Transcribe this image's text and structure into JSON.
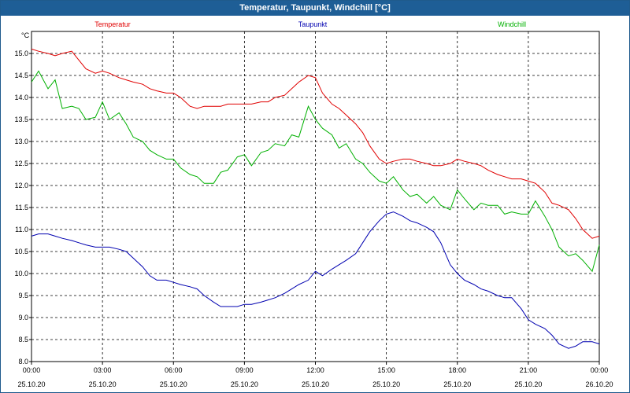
{
  "window": {
    "title": "Temperatur, Taupunkt, Windchill [°C]"
  },
  "chart_data": {
    "type": "line",
    "title": "Temperatur, Taupunkt, Windchill [°C]",
    "ylabel": "°C",
    "xlabel": "",
    "ylim": [
      8.0,
      15.5
    ],
    "yticks": [
      "8.0",
      "8.5",
      "9.0",
      "9.5",
      "10.0",
      "10.5",
      "11.0",
      "11.5",
      "12.0",
      "12.5",
      "13.0",
      "13.5",
      "14.0",
      "14.5",
      "15.0"
    ],
    "ytick_values": [
      8.0,
      8.5,
      9.0,
      9.5,
      10.0,
      10.5,
      11.0,
      11.5,
      12.0,
      12.5,
      13.0,
      13.5,
      14.0,
      14.5,
      15.0
    ],
    "xlim_hours": [
      0,
      24
    ],
    "xticks": [
      {
        "h": 0,
        "time": "00:00",
        "date": "25.10.20"
      },
      {
        "h": 3,
        "time": "03:00",
        "date": "25.10.20"
      },
      {
        "h": 6,
        "time": "06:00",
        "date": "25.10.20"
      },
      {
        "h": 9,
        "time": "09:00",
        "date": "25.10.20"
      },
      {
        "h": 12,
        "time": "12:00",
        "date": "25.10.20"
      },
      {
        "h": 15,
        "time": "15:00",
        "date": "25.10.20"
      },
      {
        "h": 18,
        "time": "18:00",
        "date": "25.10.20"
      },
      {
        "h": 21,
        "time": "21:00",
        "date": "25.10.20"
      },
      {
        "h": 24,
        "time": "00:00",
        "date": "26.10.20"
      }
    ],
    "grid": true,
    "legend_placement": "top",
    "series": [
      {
        "name": "Temperatur",
        "color": "#e00000",
        "x": [
          0,
          0.3,
          0.7,
          1,
          1.3,
          1.7,
          2,
          2.3,
          2.7,
          3,
          3.3,
          3.7,
          4,
          4.3,
          4.7,
          5,
          5.3,
          5.7,
          6,
          6.3,
          6.7,
          7,
          7.3,
          7.7,
          8,
          8.3,
          8.7,
          9,
          9.3,
          9.7,
          10,
          10.3,
          10.7,
          11,
          11.3,
          11.7,
          12,
          12.3,
          12.7,
          13,
          13.3,
          13.7,
          14,
          14.3,
          14.7,
          15,
          15.3,
          15.7,
          16,
          16.3,
          16.7,
          17,
          17.3,
          17.7,
          18,
          18.3,
          18.7,
          19,
          19.3,
          19.7,
          20,
          20.3,
          20.7,
          21,
          21.3,
          21.7,
          22,
          22.3,
          22.7,
          23,
          23.3,
          23.7,
          24
        ],
        "values": [
          15.1,
          15.05,
          15.0,
          14.95,
          15.0,
          15.05,
          14.85,
          14.65,
          14.55,
          14.6,
          14.55,
          14.45,
          14.4,
          14.35,
          14.3,
          14.2,
          14.15,
          14.1,
          14.1,
          14.0,
          13.8,
          13.75,
          13.8,
          13.8,
          13.8,
          13.85,
          13.85,
          13.85,
          13.85,
          13.9,
          13.9,
          14.0,
          14.05,
          14.2,
          14.35,
          14.5,
          14.45,
          14.1,
          13.85,
          13.75,
          13.6,
          13.4,
          13.2,
          12.9,
          12.6,
          12.5,
          12.55,
          12.6,
          12.6,
          12.55,
          12.5,
          12.45,
          12.45,
          12.5,
          12.6,
          12.55,
          12.5,
          12.45,
          12.35,
          12.25,
          12.2,
          12.15,
          12.15,
          12.1,
          12.05,
          11.85,
          11.6,
          11.55,
          11.45,
          11.25,
          11.0,
          10.8,
          10.85
        ]
      },
      {
        "name": "Taupunkt",
        "color": "#0000b0",
        "x": [
          0,
          0.3,
          0.7,
          1,
          1.3,
          1.7,
          2,
          2.3,
          2.7,
          3,
          3.3,
          3.7,
          4,
          4.3,
          4.7,
          5,
          5.3,
          5.7,
          6,
          6.3,
          6.7,
          7,
          7.3,
          7.7,
          8,
          8.3,
          8.7,
          9,
          9.3,
          9.7,
          10,
          10.3,
          10.7,
          11,
          11.3,
          11.7,
          12,
          12.3,
          12.7,
          13,
          13.3,
          13.7,
          14,
          14.3,
          14.7,
          15,
          15.3,
          15.7,
          16,
          16.3,
          16.7,
          17,
          17.3,
          17.7,
          18,
          18.3,
          18.7,
          19,
          19.3,
          19.7,
          20,
          20.3,
          20.7,
          21,
          21.3,
          21.7,
          22,
          22.3,
          22.7,
          23,
          23.3,
          23.7,
          24
        ],
        "values": [
          10.85,
          10.9,
          10.9,
          10.85,
          10.8,
          10.75,
          10.7,
          10.65,
          10.6,
          10.6,
          10.6,
          10.55,
          10.5,
          10.35,
          10.15,
          9.95,
          9.85,
          9.85,
          9.8,
          9.75,
          9.7,
          9.65,
          9.5,
          9.35,
          9.25,
          9.25,
          9.25,
          9.3,
          9.3,
          9.35,
          9.4,
          9.45,
          9.55,
          9.65,
          9.75,
          9.85,
          10.05,
          9.95,
          10.1,
          10.2,
          10.3,
          10.45,
          10.7,
          10.95,
          11.2,
          11.35,
          11.4,
          11.3,
          11.2,
          11.15,
          11.05,
          10.95,
          10.7,
          10.2,
          10.0,
          9.85,
          9.75,
          9.65,
          9.6,
          9.5,
          9.45,
          9.45,
          9.2,
          8.95,
          8.85,
          8.75,
          8.6,
          8.4,
          8.3,
          8.35,
          8.45,
          8.45,
          8.4
        ]
      },
      {
        "name": "Windchill",
        "color": "#00b000",
        "x": [
          0,
          0.3,
          0.7,
          1,
          1.3,
          1.7,
          2,
          2.3,
          2.7,
          3,
          3.3,
          3.7,
          4,
          4.3,
          4.7,
          5,
          5.3,
          5.7,
          6,
          6.3,
          6.7,
          7,
          7.3,
          7.7,
          8,
          8.3,
          8.7,
          9,
          9.3,
          9.7,
          10,
          10.3,
          10.7,
          11,
          11.3,
          11.7,
          12,
          12.3,
          12.7,
          13,
          13.3,
          13.7,
          14,
          14.3,
          14.7,
          15,
          15.3,
          15.7,
          16,
          16.3,
          16.7,
          17,
          17.3,
          17.7,
          18,
          18.3,
          18.7,
          19,
          19.3,
          19.7,
          20,
          20.3,
          20.7,
          21,
          21.3,
          21.7,
          22,
          22.3,
          22.7,
          23,
          23.3,
          23.7,
          24
        ],
        "values": [
          14.35,
          14.6,
          14.2,
          14.4,
          13.75,
          13.8,
          13.75,
          13.5,
          13.55,
          13.9,
          13.5,
          13.65,
          13.4,
          13.1,
          13.0,
          12.8,
          12.7,
          12.6,
          12.6,
          12.4,
          12.25,
          12.2,
          12.05,
          12.05,
          12.3,
          12.35,
          12.65,
          12.7,
          12.45,
          12.75,
          12.8,
          12.95,
          12.9,
          13.15,
          13.1,
          13.8,
          13.5,
          13.3,
          13.15,
          12.85,
          12.95,
          12.6,
          12.5,
          12.3,
          12.1,
          12.05,
          12.2,
          11.9,
          11.75,
          11.8,
          11.6,
          11.75,
          11.55,
          11.45,
          11.9,
          11.7,
          11.45,
          11.6,
          11.55,
          11.55,
          11.35,
          11.4,
          11.35,
          11.35,
          11.65,
          11.3,
          11.0,
          10.6,
          10.4,
          10.45,
          10.3,
          10.05,
          10.65
        ]
      }
    ]
  }
}
